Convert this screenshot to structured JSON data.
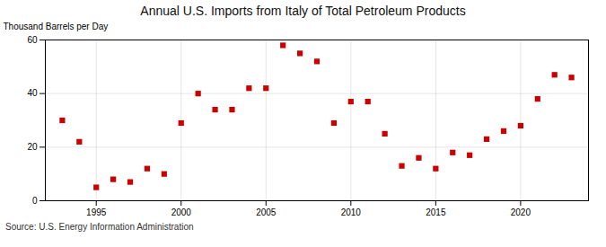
{
  "chart_data": {
    "type": "scatter",
    "title": "Annual U.S. Imports from Italy of Total Petroleum Products",
    "ylabel": "Thousand Barrels per Day",
    "source": "Source: U.S. Energy Information Administration",
    "x": [
      1993,
      1994,
      1995,
      1996,
      1997,
      1998,
      1999,
      2000,
      2001,
      2002,
      2003,
      2004,
      2005,
      2006,
      2007,
      2008,
      2009,
      2010,
      2011,
      2012,
      2013,
      2014,
      2015,
      2016,
      2017,
      2018,
      2019,
      2020,
      2021,
      2022,
      2023
    ],
    "values": [
      30,
      22,
      5,
      8,
      7,
      12,
      10,
      29,
      40,
      34,
      34,
      42,
      42,
      58,
      55,
      52,
      29,
      37,
      37,
      25,
      13,
      16,
      12,
      18,
      17,
      23,
      26,
      28,
      38,
      47,
      46
    ],
    "color": "#cc0000",
    "marker": "square",
    "xlim": [
      1992,
      2024
    ],
    "xticks": [
      1995,
      2000,
      2005,
      2010,
      2015,
      2020
    ],
    "ylim": [
      0,
      60
    ],
    "yticks": [
      0,
      20,
      40,
      60
    ],
    "grid": true
  }
}
